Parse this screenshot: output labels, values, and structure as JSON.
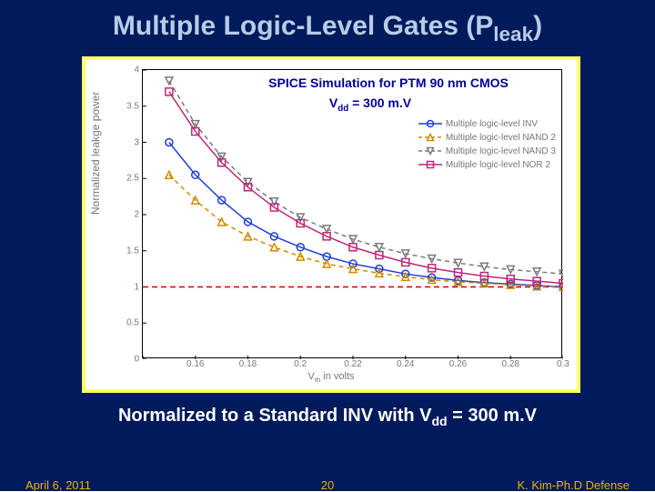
{
  "title_main": "Multiple Logic-Level Gates (P",
  "title_sub": "leak",
  "title_end": ")",
  "caption_a": "Normalized to a Standard INV with V",
  "caption_sub": "dd",
  "caption_b": " = 300 m.V",
  "footer": {
    "date": "April 6, 2011",
    "page": "20",
    "author": "K. Kim-Ph.D Defense"
  },
  "chart": {
    "spice_label": "SPICE Simulation for PTM 90 nm CMOS",
    "vdd_a": "V",
    "vdd_sub": "dd",
    "vdd_b": " = 300 m.V",
    "ylabel": "Normalized leakge power",
    "xlabel_a": "V",
    "xlabel_sub": "th",
    "xlabel_b": " in volts",
    "ylim": [
      0,
      4
    ],
    "yticks": [
      0,
      0.5,
      1,
      1.5,
      2,
      2.5,
      3,
      3.5,
      4
    ],
    "xlim": [
      0.14,
      0.3
    ],
    "xticks": [
      0.14,
      0.16,
      0.18,
      0.2,
      0.22,
      0.24,
      0.26,
      0.28,
      0.3
    ],
    "xtick_labels": [
      "",
      "0.16",
      "0.18",
      "0.2",
      "0.22",
      "0.24",
      "0.26",
      "0.28",
      "0.3"
    ],
    "refline_y": 1.0,
    "refline_color": "#cc0000",
    "series": [
      {
        "name": "Multiple logic-level INV",
        "color": "#1f3fd6",
        "marker": "circle",
        "x": [
          0.15,
          0.16,
          0.17,
          0.18,
          0.19,
          0.2,
          0.21,
          0.22,
          0.23,
          0.24,
          0.25,
          0.26,
          0.27,
          0.28,
          0.29,
          0.3
        ],
        "y": [
          3.0,
          2.55,
          2.2,
          1.9,
          1.7,
          1.55,
          1.42,
          1.32,
          1.25,
          1.18,
          1.13,
          1.09,
          1.06,
          1.04,
          1.02,
          1.0
        ]
      },
      {
        "name": "Multiple logic-level NAND 2",
        "color": "#d28a00",
        "marker": "triangle",
        "x": [
          0.15,
          0.16,
          0.17,
          0.18,
          0.19,
          0.2,
          0.21,
          0.22,
          0.23,
          0.24,
          0.25,
          0.26,
          0.27,
          0.28,
          0.29,
          0.3
        ],
        "y": [
          2.55,
          2.2,
          1.9,
          1.7,
          1.55,
          1.42,
          1.32,
          1.25,
          1.19,
          1.14,
          1.1,
          1.07,
          1.05,
          1.03,
          1.01,
          1.0
        ]
      },
      {
        "name": "Multiple logic-level NAND 3",
        "color": "#7a7a7a",
        "marker": "triangle-down",
        "x": [
          0.15,
          0.16,
          0.17,
          0.18,
          0.19,
          0.2,
          0.21,
          0.22,
          0.23,
          0.24,
          0.25,
          0.26,
          0.27,
          0.28,
          0.29,
          0.3
        ],
        "y": [
          3.85,
          3.25,
          2.8,
          2.45,
          2.18,
          1.96,
          1.8,
          1.66,
          1.55,
          1.46,
          1.39,
          1.33,
          1.28,
          1.24,
          1.21,
          1.18
        ]
      },
      {
        "name": "Multiple logic-level NOR 2",
        "color": "#c0267a",
        "marker": "square",
        "x": [
          0.15,
          0.16,
          0.17,
          0.18,
          0.19,
          0.2,
          0.21,
          0.22,
          0.23,
          0.24,
          0.25,
          0.26,
          0.27,
          0.28,
          0.29,
          0.3
        ],
        "y": [
          3.7,
          3.15,
          2.72,
          2.38,
          2.1,
          1.88,
          1.7,
          1.55,
          1.44,
          1.34,
          1.26,
          1.2,
          1.15,
          1.11,
          1.08,
          1.05
        ]
      }
    ]
  }
}
